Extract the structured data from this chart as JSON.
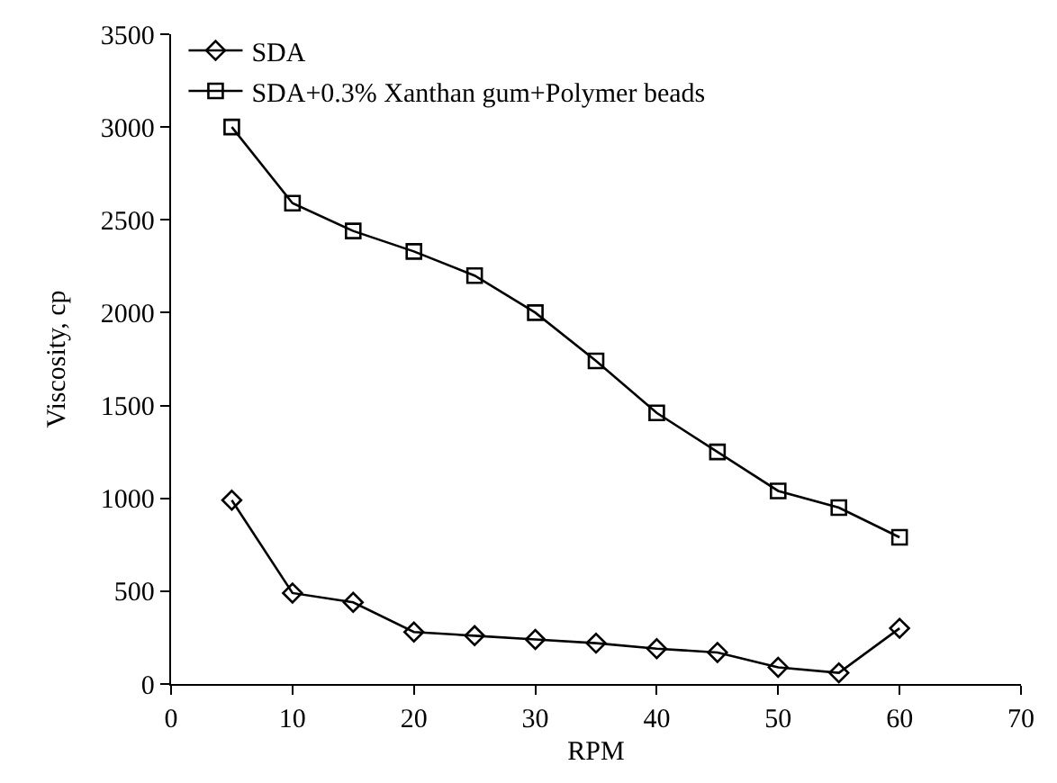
{
  "chart_data": {
    "type": "line",
    "xlabel": "RPM",
    "ylabel": "Viscosity, cp",
    "x": [
      5,
      10,
      15,
      20,
      25,
      30,
      35,
      40,
      45,
      50,
      55,
      60
    ],
    "series": [
      {
        "name": "SDA",
        "color": "#000000",
        "marker": "diamond",
        "values": [
          990,
          490,
          440,
          280,
          260,
          240,
          220,
          190,
          170,
          90,
          60,
          300
        ]
      },
      {
        "name": "SDA+0.3% Xanthan gum+Polymer beads",
        "color": "#000000",
        "marker": "square",
        "values": [
          3000,
          2590,
          2440,
          2330,
          2200,
          2000,
          1740,
          1460,
          1250,
          1040,
          950,
          790
        ]
      }
    ],
    "xlim": [
      0,
      70
    ],
    "xticks": [
      0,
      10,
      20,
      30,
      40,
      50,
      60,
      70
    ],
    "ylim": [
      0,
      3500
    ],
    "yticks": [
      0,
      500,
      1000,
      1500,
      2000,
      2500,
      3000,
      3500
    ],
    "legend": "top left",
    "line_style": "solid"
  }
}
